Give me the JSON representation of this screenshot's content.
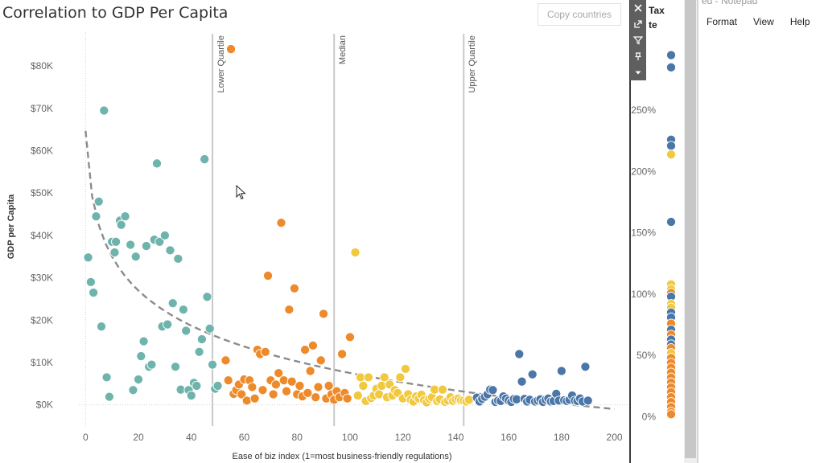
{
  "window": {
    "title": "Correlation to GDP Per Capita",
    "copy_button": "Copy countries"
  },
  "toolbar": {
    "close_icon": "close-icon",
    "popout_icon": "popout-icon",
    "filter_icon": "filter-icon",
    "pin_icon": "pin-icon",
    "menu_icon": "dropdown-icon"
  },
  "side_panel": {
    "title_line1": "Tax",
    "title_line2": "te"
  },
  "notepad": {
    "title": "ed - Notepad",
    "menu": [
      "Format",
      "View",
      "Help"
    ]
  },
  "colors": {
    "q1": "#6fb4ac",
    "q2": "#ee8a2a",
    "q3": "#f0c93f",
    "q4": "#4a76a8",
    "trend": "#8c8c8c",
    "ref_line": "#c8c8c8"
  },
  "chart_data": [
    {
      "type": "scatter",
      "title": "Correlation to GDP Per Capita",
      "xlabel": "Ease of biz index (1=most business-friendly regulations)",
      "ylabel": "GDP per Capita",
      "xlim": [
        -8,
        205
      ],
      "ylim": [
        -5000,
        88000
      ],
      "x_ticks": [
        0,
        20,
        40,
        60,
        80,
        100,
        120,
        140,
        160,
        180,
        200
      ],
      "x_tick_labels": [
        "0",
        "20",
        "40",
        "60",
        "80",
        "100",
        "120",
        "140",
        "160",
        "180",
        "200"
      ],
      "y_ticks": [
        0,
        10000,
        20000,
        30000,
        40000,
        50000,
        60000,
        70000,
        80000
      ],
      "y_tick_labels": [
        "$0K",
        "$10K",
        "$20K",
        "$30K",
        "$40K",
        "$50K",
        "$60K",
        "$70K",
        "$80K"
      ],
      "reference_lines": [
        {
          "x": 48,
          "label": "Lower Quartile"
        },
        {
          "x": 94,
          "label": "Median"
        },
        {
          "x": 143,
          "label": "Upper Quartile"
        }
      ],
      "trendline": {
        "type": "log",
        "x_range": [
          0,
          200
        ],
        "y_start": 64700,
        "y_end": -1000
      },
      "series": [
        {
          "name": "Q1",
          "color": "#6fb4ac",
          "points": [
            [
              1,
              34800
            ],
            [
              2,
              29000
            ],
            [
              3,
              26500
            ],
            [
              4,
              44500
            ],
            [
              5,
              48000
            ],
            [
              6,
              18500
            ],
            [
              7,
              69500
            ],
            [
              8,
              6500
            ],
            [
              9,
              1900
            ],
            [
              10,
              38500
            ],
            [
              11,
              36000
            ],
            [
              11.5,
              38500
            ],
            [
              13,
              43500
            ],
            [
              13.5,
              42500
            ],
            [
              15,
              44500
            ],
            [
              17,
              37800
            ],
            [
              18,
              3500
            ],
            [
              19,
              35000
            ],
            [
              20,
              6000
            ],
            [
              21,
              11500
            ],
            [
              22,
              15000
            ],
            [
              23,
              37500
            ],
            [
              24,
              9000
            ],
            [
              25,
              9500
            ],
            [
              26,
              39000
            ],
            [
              27,
              57000
            ],
            [
              28,
              38500
            ],
            [
              29,
              18500
            ],
            [
              30,
              40000
            ],
            [
              31,
              19000
            ],
            [
              32,
              36500
            ],
            [
              33,
              24000
            ],
            [
              34,
              9000
            ],
            [
              35,
              34500
            ],
            [
              36,
              3600
            ],
            [
              37,
              22500
            ],
            [
              38,
              17500
            ],
            [
              39,
              3500
            ],
            [
              40,
              2200
            ],
            [
              41,
              5200
            ],
            [
              42,
              4500
            ],
            [
              43,
              12500
            ],
            [
              44,
              15500
            ],
            [
              45,
              58000
            ],
            [
              46,
              25500
            ],
            [
              47,
              18000
            ],
            [
              48,
              9500
            ],
            [
              49,
              3800
            ],
            [
              50,
              4500
            ]
          ]
        },
        {
          "name": "Q2",
          "color": "#ee8a2a",
          "points": [
            [
              53,
              10500
            ],
            [
              54,
              5800
            ],
            [
              55,
              84000
            ],
            [
              56,
              2600
            ],
            [
              57,
              3500
            ],
            [
              58,
              4800
            ],
            [
              59,
              2500
            ],
            [
              60,
              6000
            ],
            [
              61,
              1000
            ],
            [
              62,
              5800
            ],
            [
              63,
              4200
            ],
            [
              64,
              1500
            ],
            [
              65,
              13000
            ],
            [
              66,
              12000
            ],
            [
              67,
              3500
            ],
            [
              68,
              12500
            ],
            [
              69,
              30500
            ],
            [
              70,
              5800
            ],
            [
              71,
              2500
            ],
            [
              72,
              4800
            ],
            [
              73,
              7500
            ],
            [
              74,
              43000
            ],
            [
              75,
              5800
            ],
            [
              76,
              3200
            ],
            [
              77,
              22500
            ],
            [
              78,
              5500
            ],
            [
              79,
              27500
            ],
            [
              80,
              2500
            ],
            [
              81,
              4500
            ],
            [
              82,
              2000
            ],
            [
              83,
              13000
            ],
            [
              84,
              2800
            ],
            [
              85,
              8000
            ],
            [
              86,
              14000
            ],
            [
              87,
              1800
            ],
            [
              88,
              4200
            ],
            [
              89,
              10500
            ],
            [
              90,
              21500
            ],
            [
              91,
              1500
            ],
            [
              92,
              4500
            ],
            [
              93,
              2500
            ],
            [
              94,
              1200
            ],
            [
              95,
              3200
            ],
            [
              96,
              1800
            ],
            [
              97,
              12000
            ],
            [
              98,
              2800
            ],
            [
              99,
              1500
            ],
            [
              100,
              16000
            ]
          ]
        },
        {
          "name": "Q3",
          "color": "#f0c93f",
          "points": [
            [
              102,
              36000
            ],
            [
              103,
              2200
            ],
            [
              104,
              6500
            ],
            [
              105,
              4500
            ],
            [
              106,
              900
            ],
            [
              107,
              6500
            ],
            [
              108,
              1600
            ],
            [
              109,
              2200
            ],
            [
              110,
              3800
            ],
            [
              111,
              2500
            ],
            [
              112,
              4500
            ],
            [
              113,
              6500
            ],
            [
              114,
              1800
            ],
            [
              115,
              4800
            ],
            [
              116,
              2200
            ],
            [
              117,
              3500
            ],
            [
              118,
              2800
            ],
            [
              119,
              6500
            ],
            [
              120,
              1500
            ],
            [
              121,
              8500
            ],
            [
              122,
              2500
            ],
            [
              123,
              1200
            ],
            [
              124,
              800
            ],
            [
              125,
              2000
            ],
            [
              126,
              1500
            ],
            [
              127,
              2400
            ],
            [
              128,
              1100
            ],
            [
              129,
              600
            ],
            [
              130,
              1400
            ],
            [
              131,
              1800
            ],
            [
              132,
              3600
            ],
            [
              133,
              900
            ],
            [
              134,
              1300
            ],
            [
              135,
              3600
            ],
            [
              136,
              700
            ],
            [
              137,
              1000
            ],
            [
              138,
              1800
            ],
            [
              139,
              900
            ],
            [
              140,
              1300
            ],
            [
              141,
              1500
            ],
            [
              142,
              1100
            ],
            [
              143,
              1000
            ],
            [
              144,
              800
            ],
            [
              145,
              1200
            ]
          ]
        },
        {
          "name": "Q4",
          "color": "#4a76a8",
          "points": [
            [
              148,
              1700
            ],
            [
              149,
              800
            ],
            [
              150,
              1400
            ],
            [
              151,
              1900
            ],
            [
              152,
              2500
            ],
            [
              153,
              3600
            ],
            [
              154,
              3500
            ],
            [
              155,
              700
            ],
            [
              156,
              1000
            ],
            [
              157,
              900
            ],
            [
              158,
              2000
            ],
            [
              159,
              1500
            ],
            [
              160,
              1000
            ],
            [
              161,
              700
            ],
            [
              162,
              1400
            ],
            [
              163,
              1300
            ],
            [
              164,
              12000
            ],
            [
              165,
              5500
            ],
            [
              166,
              1400
            ],
            [
              167,
              800
            ],
            [
              168,
              1200
            ],
            [
              169,
              7200
            ],
            [
              170,
              800
            ],
            [
              171,
              1000
            ],
            [
              172,
              1300
            ],
            [
              173,
              700
            ],
            [
              174,
              1200
            ],
            [
              175,
              1500
            ],
            [
              176,
              800
            ],
            [
              177,
              900
            ],
            [
              178,
              2600
            ],
            [
              179,
              1000
            ],
            [
              180,
              8000
            ],
            [
              181,
              1100
            ],
            [
              182,
              900
            ],
            [
              183,
              1200
            ],
            [
              184,
              2200
            ],
            [
              185,
              1000
            ],
            [
              186,
              900
            ],
            [
              187,
              1500
            ],
            [
              188,
              800
            ],
            [
              189,
              9000
            ],
            [
              190,
              1000
            ]
          ]
        }
      ]
    },
    {
      "type": "scatter",
      "title": "Tax Rate",
      "ylim": [
        -3,
        298
      ],
      "y_ticks": [
        0,
        50,
        100,
        150,
        200,
        250
      ],
      "y_tick_labels": [
        "0%",
        "50%",
        "100%",
        "150%",
        "200%",
        "250%"
      ],
      "points": [
        [
          295,
          "#4a76a8"
        ],
        [
          285,
          "#4a76a8"
        ],
        [
          226,
          "#4a76a8"
        ],
        [
          221,
          "#4a76a8"
        ],
        [
          214,
          "#f0c93f"
        ],
        [
          159,
          "#4a76a8"
        ],
        [
          108,
          "#f0c93f"
        ],
        [
          104,
          "#f0c93f"
        ],
        [
          101,
          "#ee8a2a"
        ],
        [
          98,
          "#4a76a8"
        ],
        [
          92,
          "#f0c93f"
        ],
        [
          89,
          "#f0c93f"
        ],
        [
          85,
          "#4a76a8"
        ],
        [
          81,
          "#4a76a8"
        ],
        [
          76,
          "#ee8a2a"
        ],
        [
          71,
          "#4a76a8"
        ],
        [
          67,
          "#ee8a2a"
        ],
        [
          63,
          "#4a76a8"
        ],
        [
          59,
          "#4a76a8"
        ],
        [
          56,
          "#ee8a2a"
        ],
        [
          52,
          "#f0c93f"
        ],
        [
          48,
          "#ee8a2a"
        ],
        [
          44,
          "#ee8a2a"
        ],
        [
          40,
          "#ee8a2a"
        ],
        [
          36,
          "#ee8a2a"
        ],
        [
          32,
          "#ee8a2a"
        ],
        [
          28,
          "#ee8a2a"
        ],
        [
          24,
          "#ee8a2a"
        ],
        [
          20,
          "#ee8a2a"
        ],
        [
          16,
          "#ee8a2a"
        ],
        [
          12,
          "#ee8a2a"
        ],
        [
          8,
          "#ee8a2a"
        ],
        [
          4,
          "#ee8a2a"
        ],
        [
          2,
          "#ee8a2a"
        ]
      ]
    }
  ]
}
